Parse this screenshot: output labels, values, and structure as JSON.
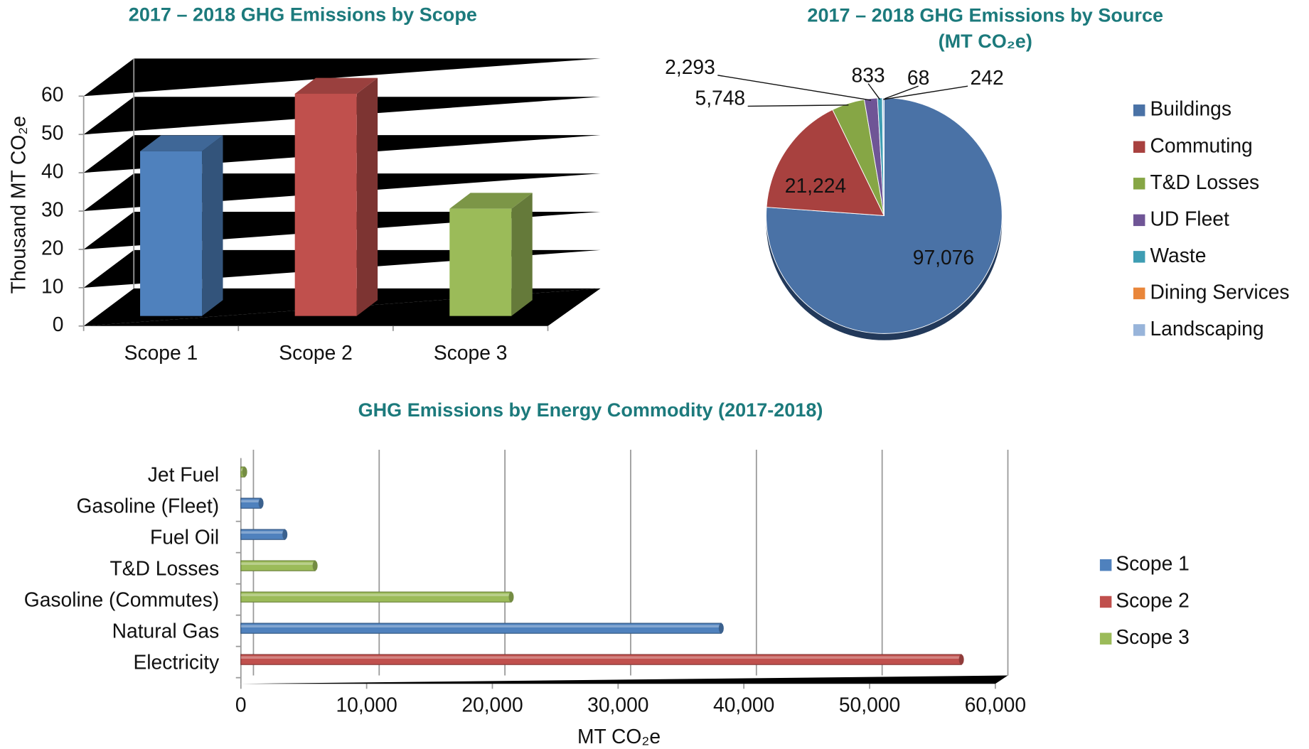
{
  "chart_data": [
    {
      "type": "bar3d",
      "title": "2017 – 2018 GHG Emissions by Scope",
      "y_label": "Thousand MT CO₂e",
      "categories": [
        "Scope 1",
        "Scope 2",
        "Scope 3"
      ],
      "values": [
        43,
        58,
        28
      ],
      "colors": [
        "#4f81bd",
        "#c0504d",
        "#9bbb59"
      ],
      "ylim": [
        0,
        60
      ],
      "yticks": [
        0,
        10,
        20,
        30,
        40,
        50,
        60
      ],
      "grid": true
    },
    {
      "type": "pie",
      "title": "2017 – 2018 GHG Emissions by Source",
      "subtitle": "(MT CO₂e)",
      "categories": [
        "Buildings",
        "Commuting",
        "T&D Losses",
        "UD Fleet",
        "Waste",
        "Dining Services",
        "Landscaping"
      ],
      "values": [
        97076,
        21224,
        5748,
        2293,
        833,
        68,
        242
      ],
      "value_labels": [
        "97,076",
        "21,224",
        "5,748",
        "2,293",
        "833",
        "68",
        "242"
      ],
      "colors": [
        "#4a72a6",
        "#a8413f",
        "#86a645",
        "#6f5596",
        "#3e9db3",
        "#e9863a",
        "#98b4da"
      ],
      "legend": "right"
    },
    {
      "type": "hbar3d",
      "title": "GHG Emissions by Energy Commodity (2017-2018)",
      "x_label": "MT CO₂e",
      "categories": [
        "Electricity",
        "Natural Gas",
        "Gasoline (Commutes)",
        "T&D Losses",
        "Fuel Oil",
        "Gasoline (Fleet)",
        "Jet Fuel"
      ],
      "series": [
        {
          "name": "Scope 1",
          "color": "#4f81bd",
          "values": [
            null,
            38200,
            null,
            null,
            3500,
            1600,
            null
          ]
        },
        {
          "name": "Scope 2",
          "color": "#c0504d",
          "values": [
            57300,
            null,
            null,
            null,
            null,
            null,
            null
          ]
        },
        {
          "name": "Scope 3",
          "color": "#9bbb59",
          "values": [
            null,
            null,
            21500,
            5900,
            null,
            null,
            300
          ]
        }
      ],
      "xlim": [
        0,
        60000
      ],
      "xticks": [
        0,
        {
          "value": 10000,
          "label": "10,000"
        },
        {
          "value": 20000,
          "label": "20,000"
        },
        {
          "value": 30000,
          "label": "30,000"
        },
        {
          "value": 40000,
          "label": "40,000"
        },
        {
          "value": 50000,
          "label": "50,000"
        },
        {
          "value": 60000,
          "label": "60,000"
        }
      ],
      "grid": true,
      "legend": "right"
    }
  ]
}
